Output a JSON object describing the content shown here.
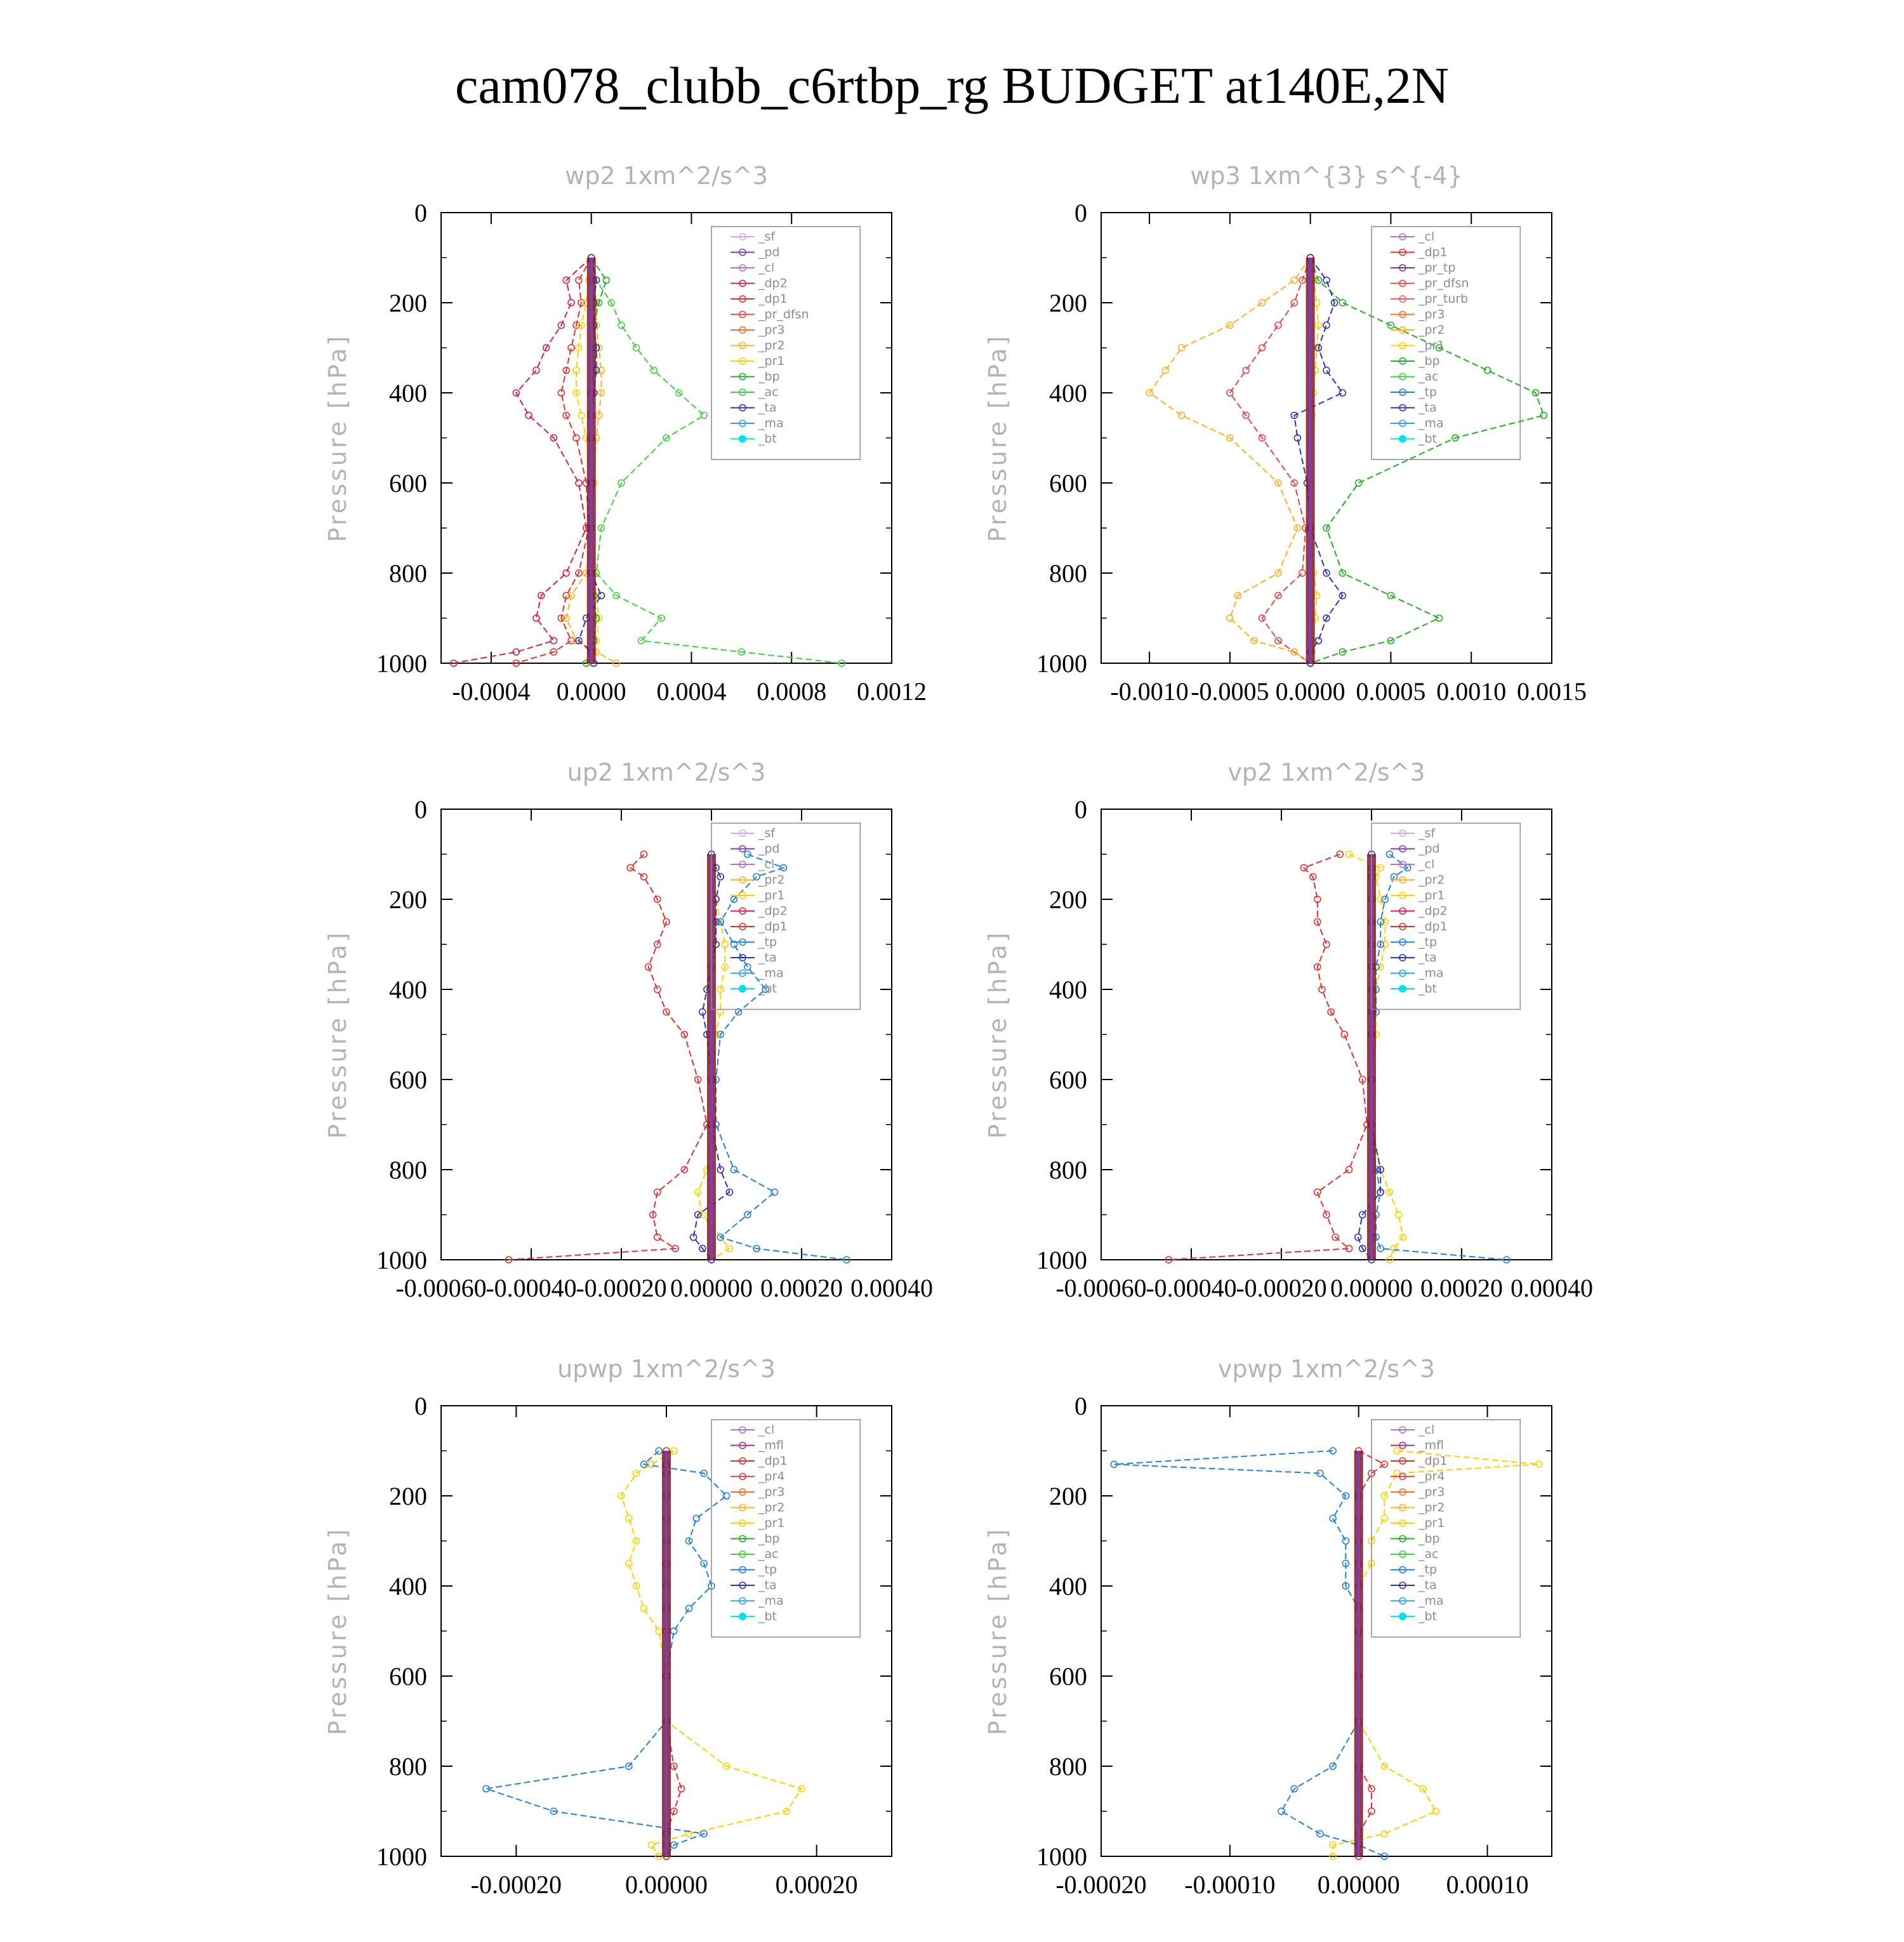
{
  "title": "cam078_clubb_c6rtbp_rg  BUDGET at140E,2N",
  "colors": {
    "axis": "#000000",
    "label_gray": "#b3b3b3",
    "series": {
      "_sf": "#d7a8f0",
      "_pd": "#7b3fb5",
      "_cl": "#b070d8",
      "_mfl": "#a0308a",
      "_dp2": "#d42050",
      "_dp1": "#e03030",
      "_dp1_alt": "#b03030",
      "_pr_dfsn": "#e04848",
      "_pr_tp": "#6a3a9a",
      "_pr_turb": "#e06060",
      "_pr4": "#e03a3a",
      "_pr3": "#f07030",
      "_pr2": "#ffb020",
      "_pr1": "#ffd000",
      "_bp": "#20b020",
      "_ac": "#40d040",
      "_tp": "#2080e0",
      "_ta": "#3030c0",
      "_ma": "#30a0e0",
      "_bt": "#00e0f0"
    }
  },
  "chart_data": [
    {
      "type": "line",
      "title": "wp2  1xm^2/s^3",
      "ylabel": "Pressure [hPa]",
      "xlim": [
        -0.0006,
        0.0012
      ],
      "xticks": [
        "-0.0004",
        "0.0000",
        "0.0004",
        "0.0008",
        "0.0012"
      ],
      "xtick_values": [
        -0.0004,
        0.0,
        0.0004,
        0.0008,
        0.0012
      ],
      "ylim": [
        0,
        1000
      ],
      "yticks": [
        "0",
        "200",
        "400",
        "600",
        "800",
        "1000"
      ],
      "legend": [
        "_sf",
        "_pd",
        "_cl",
        "_dp2",
        "_dp1",
        "_pr_dfsn",
        "_pr3",
        "_pr2",
        "_pr1",
        "_bp",
        "_ac",
        "_ta",
        "_ma",
        "_bt"
      ],
      "pressure": [
        100,
        150,
        200,
        250,
        300,
        350,
        400,
        450,
        500,
        600,
        700,
        800,
        850,
        900,
        950,
        975,
        1000
      ],
      "series": [
        {
          "name": "_dp2",
          "values": [
            0,
            -0.0001,
            -8e-05,
            -0.00012,
            -0.00018,
            -0.00022,
            -0.0003,
            -0.00025,
            -0.00015,
            -5e-05,
            -2e-05,
            -0.0001,
            -0.0002,
            -0.00022,
            -0.00015,
            -0.0003,
            -0.00055
          ]
        },
        {
          "name": "_dp1",
          "values": [
            0,
            -5e-05,
            -4e-05,
            -6e-05,
            -8e-05,
            -0.0001,
            -0.00012,
            -0.0001,
            -6e-05,
            -2e-05,
            -1e-05,
            -5e-05,
            -0.0001,
            -0.00012,
            -8e-05,
            -0.00015,
            -0.0003
          ]
        },
        {
          "name": "_pr2",
          "values": [
            0,
            1e-05,
            2e-05,
            2e-05,
            3e-05,
            4e-05,
            4e-05,
            3e-05,
            2e-05,
            1e-05,
            0,
            -2e-05,
            -8e-05,
            -0.0001,
            -6e-05,
            2e-05,
            0.0001
          ]
        },
        {
          "name": "_pr1",
          "values": [
            0,
            -1e-05,
            -2e-05,
            -4e-05,
            -5e-05,
            -6e-05,
            -6e-05,
            -4e-05,
            -2e-05,
            0,
            0,
            1e-05,
            2e-05,
            3e-05,
            2e-05,
            1e-05,
            0
          ]
        },
        {
          "name": "_bp",
          "values": [
            0,
            6e-05,
            3e-05,
            1e-05,
            2e-05,
            1e-05,
            0,
            0,
            0,
            0,
            0,
            0,
            1e-05,
            2e-05,
            1e-05,
            0,
            -2e-05
          ]
        },
        {
          "name": "_ac",
          "values": [
            0,
            2e-05,
            8e-05,
            0.00012,
            0.00018,
            0.00025,
            0.00035,
            0.00045,
            0.0003,
            0.00012,
            4e-05,
            2e-05,
            0.0001,
            0.00028,
            0.0002,
            0.0006,
            0.001
          ]
        },
        {
          "name": "_ta",
          "values": [
            0,
            2e-05,
            1e-05,
            1e-05,
            2e-05,
            2e-05,
            1e-05,
            0,
            0,
            0,
            0,
            0,
            4e-05,
            -2e-05,
            -5e-05,
            0,
            1e-05
          ]
        },
        {
          "name": "_bt",
          "values": [
            0,
            0,
            0,
            0,
            0,
            0,
            0,
            0,
            0,
            0,
            0,
            0,
            0,
            0,
            0,
            0,
            0
          ]
        }
      ]
    },
    {
      "type": "line",
      "title": "wp3  1xm^{3} s^{-4}",
      "ylabel": "Pressure [hPa]",
      "xlim": [
        -0.0013,
        0.0015
      ],
      "xticks": [
        "-0.0010",
        "-0.0005",
        "0.0000",
        "0.0005",
        "0.0010",
        "0.0015"
      ],
      "xtick_values": [
        -0.001,
        -0.0005,
        0.0,
        0.0005,
        0.001,
        0.0015
      ],
      "ylim": [
        0,
        1000
      ],
      "yticks": [
        "0",
        "200",
        "400",
        "600",
        "800",
        "1000"
      ],
      "legend": [
        "_cl",
        "_dp1",
        "_pr_tp",
        "_pr_dfsn",
        "_pr_turb",
        "_pr3",
        "_pr2",
        "_pr1",
        "_bp",
        "_ac",
        "_tp",
        "_ta",
        "_ma",
        "_bt"
      ],
      "pressure": [
        100,
        150,
        200,
        250,
        300,
        350,
        400,
        450,
        500,
        600,
        700,
        800,
        850,
        900,
        950,
        975,
        1000
      ],
      "series": [
        {
          "name": "_pr_dfsn",
          "values": [
            0,
            -5e-05,
            -0.0001,
            -0.0002,
            -0.0003,
            -0.0004,
            -0.0005,
            -0.0004,
            -0.0003,
            -0.0001,
            -3e-05,
            -5e-05,
            -0.0002,
            -0.0003,
            -0.0002,
            -0.0001,
            0
          ]
        },
        {
          "name": "_pr2",
          "values": [
            0,
            -0.0001,
            -0.0003,
            -0.0005,
            -0.0008,
            -0.0009,
            -0.001,
            -0.0008,
            -0.0005,
            -0.0002,
            -8e-05,
            -0.0002,
            -0.00045,
            -0.0005,
            -0.00035,
            -0.0001,
            0
          ]
        },
        {
          "name": "_pr1",
          "values": [
            0,
            2e-05,
            4e-05,
            5e-05,
            4e-05,
            3e-05,
            2e-05,
            1e-05,
            0,
            0,
            0,
            2e-05,
            4e-05,
            3e-05,
            2e-05,
            1e-05,
            0
          ]
        },
        {
          "name": "_bp",
          "values": [
            0,
            5e-05,
            0.0002,
            0.0005,
            0.0008,
            0.0011,
            0.0014,
            0.00145,
            0.0009,
            0.0003,
            0.0001,
            0.0002,
            0.0005,
            0.0008,
            0.0005,
            0.0002,
            0
          ]
        },
        {
          "name": "_ta",
          "values": [
            0,
            0.0001,
            0.00015,
            0.0001,
            5e-05,
            0.0001,
            0.0002,
            -0.0001,
            -8e-05,
            -2e-05,
            0,
            0.0001,
            0.0002,
            0.0001,
            5e-05,
            0,
            0
          ]
        },
        {
          "name": "_bt",
          "values": [
            0,
            0,
            0,
            0,
            0,
            0,
            0,
            0,
            0,
            0,
            0,
            0,
            0,
            0,
            0,
            0,
            0
          ]
        }
      ]
    },
    {
      "type": "line",
      "title": "up2  1xm^2/s^3",
      "ylabel": "Pressure [hPa]",
      "xlim": [
        -0.0006,
        0.0004
      ],
      "xticks": [
        "-0.00060",
        "-0.00040",
        "-0.00020",
        "0.00000",
        "0.00020",
        "0.00040"
      ],
      "xtick_values": [
        -0.0006,
        -0.0004,
        -0.0002,
        0.0,
        0.0002,
        0.0004
      ],
      "ylim": [
        0,
        1000
      ],
      "yticks": [
        "0",
        "200",
        "400",
        "600",
        "800",
        "1000"
      ],
      "legend": [
        "_sf",
        "_pd",
        "_cl",
        "_pr2",
        "_pr1",
        "_dp2",
        "_dp1",
        "_tp",
        "_ta",
        "_ma",
        "_bt"
      ],
      "pressure": [
        100,
        130,
        150,
        200,
        250,
        300,
        350,
        400,
        450,
        500,
        600,
        700,
        800,
        850,
        900,
        950,
        975,
        1000
      ],
      "series": [
        {
          "name": "_pr1",
          "values": [
            0,
            1e-05,
            2e-05,
            1e-05,
            2e-05,
            3e-05,
            3e-05,
            2e-05,
            2e-05,
            1e-05,
            0,
            0,
            -1e-05,
            -3e-05,
            -2e-05,
            2e-05,
            4e-05,
            0
          ]
        },
        {
          "name": "_dp1",
          "values": [
            -0.00015,
            -0.00018,
            -0.00015,
            -0.00012,
            -0.0001,
            -0.00012,
            -0.00014,
            -0.00012,
            -0.0001,
            -6e-05,
            -3e-05,
            -1e-05,
            -6e-05,
            -0.00012,
            -0.00013,
            -0.00012,
            -8e-05,
            -0.00045
          ]
        },
        {
          "name": "_tp",
          "values": [
            8e-05,
            0.00016,
            0.0001,
            5e-05,
            2e-05,
            5e-05,
            8e-05,
            0.00012,
            6e-05,
            2e-05,
            1e-05,
            1e-05,
            5e-05,
            0.00014,
            8e-05,
            2e-05,
            0.0001,
            0.0003
          ]
        },
        {
          "name": "_ta",
          "values": [
            0,
            1e-05,
            2e-05,
            1e-05,
            1e-05,
            1e-05,
            0,
            -1e-05,
            -2e-05,
            -1e-05,
            0,
            0,
            2e-05,
            4e-05,
            -3e-05,
            -4e-05,
            -2e-05,
            0
          ]
        },
        {
          "name": "_bt",
          "values": [
            0,
            0,
            0,
            0,
            0,
            0,
            0,
            0,
            0,
            0,
            0,
            0,
            0,
            0,
            0,
            0,
            0,
            0
          ]
        }
      ]
    },
    {
      "type": "line",
      "title": "vp2  1xm^2/s^3",
      "ylabel": "Pressure [hPa]",
      "xlim": [
        -0.0006,
        0.0004
      ],
      "xticks": [
        "-0.00060",
        "-0.00040",
        "-0.00020",
        "0.00000",
        "0.00020",
        "0.00040"
      ],
      "xtick_values": [
        -0.0006,
        -0.0004,
        -0.0002,
        0.0,
        0.0002,
        0.0004
      ],
      "ylim": [
        0,
        1000
      ],
      "yticks": [
        "0",
        "200",
        "400",
        "600",
        "800",
        "1000"
      ],
      "legend": [
        "_sf",
        "_pd",
        "_cl",
        "_pr2",
        "_pr1",
        "_dp2",
        "_dp1",
        "_tp",
        "_ta",
        "_ma",
        "_bt"
      ],
      "pressure": [
        100,
        130,
        150,
        200,
        250,
        300,
        350,
        400,
        450,
        500,
        600,
        700,
        800,
        850,
        900,
        950,
        975,
        1000
      ],
      "series": [
        {
          "name": "_pr1",
          "values": [
            -5e-05,
            2e-05,
            1e-05,
            2e-05,
            3e-05,
            3e-05,
            2e-05,
            1e-05,
            1e-05,
            1e-05,
            0,
            0,
            2e-05,
            4e-05,
            6e-05,
            7e-05,
            5e-05,
            4e-05
          ]
        },
        {
          "name": "_dp1",
          "values": [
            -7e-05,
            -0.00015,
            -0.00013,
            -0.00012,
            -0.00012,
            -0.0001,
            -0.00012,
            -0.00011,
            -9e-05,
            -6e-05,
            -2e-05,
            -1e-05,
            -5e-05,
            -0.00012,
            -0.0001,
            -8e-05,
            -5e-05,
            -0.00045
          ]
        },
        {
          "name": "_tp",
          "values": [
            4e-05,
            8e-05,
            5e-05,
            3e-05,
            2e-05,
            2e-05,
            1e-05,
            1e-05,
            1e-05,
            0,
            0,
            0,
            1e-05,
            2e-05,
            1e-05,
            1e-05,
            2e-05,
            0.0003
          ]
        },
        {
          "name": "_ta",
          "values": [
            0,
            0,
            0,
            0,
            0,
            0,
            0,
            0,
            0,
            0,
            0,
            0,
            2e-05,
            2e-05,
            -2e-05,
            -3e-05,
            -2e-05,
            0
          ]
        },
        {
          "name": "_bt",
          "values": [
            0,
            0,
            0,
            0,
            0,
            0,
            0,
            0,
            0,
            0,
            0,
            0,
            0,
            0,
            0,
            0,
            0,
            0
          ]
        }
      ]
    },
    {
      "type": "line",
      "title": "upwp  1xm^2/s^3",
      "ylabel": "Pressure [hPa]",
      "xlim": [
        -0.0003,
        0.0003
      ],
      "xticks": [
        "-0.00020",
        "0.00000",
        "0.00020"
      ],
      "xtick_values": [
        -0.0002,
        0.0,
        0.0002
      ],
      "ylim": [
        0,
        1000
      ],
      "yticks": [
        "0",
        "200",
        "400",
        "600",
        "800",
        "1000"
      ],
      "legend": [
        "_cl",
        "_mfl",
        "_dp1",
        "_pr4",
        "_pr3",
        "_pr2",
        "_pr1",
        "_bp",
        "_ac",
        "_tp",
        "_ta",
        "_ma",
        "_bt"
      ],
      "pressure": [
        100,
        130,
        150,
        200,
        250,
        300,
        350,
        400,
        450,
        500,
        600,
        700,
        800,
        850,
        900,
        950,
        975,
        1000
      ],
      "series": [
        {
          "name": "_pr1",
          "values": [
            1e-05,
            -2e-05,
            -4e-05,
            -6e-05,
            -5e-05,
            -4e-05,
            -5e-05,
            -4e-05,
            -3e-05,
            -1e-05,
            0,
            0,
            8e-05,
            0.00018,
            0.00016,
            3e-05,
            -2e-05,
            -1e-05
          ]
        },
        {
          "name": "_tp",
          "values": [
            -1e-05,
            -3e-05,
            5e-05,
            8e-05,
            4e-05,
            3e-05,
            5e-05,
            6e-05,
            3e-05,
            1e-05,
            0,
            0,
            -5e-05,
            -0.00024,
            -0.00015,
            5e-05,
            1e-05,
            0
          ]
        },
        {
          "name": "_dp1",
          "values": [
            0,
            0,
            0,
            0,
            0,
            0,
            0,
            0,
            0,
            0,
            0,
            0,
            1e-05,
            2e-05,
            1e-05,
            0,
            0,
            0
          ]
        },
        {
          "name": "_bt",
          "values": [
            0,
            0,
            0,
            0,
            0,
            0,
            0,
            0,
            0,
            0,
            0,
            0,
            0,
            0,
            0,
            0,
            0,
            0
          ]
        }
      ]
    },
    {
      "type": "line",
      "title": "vpwp  1xm^2/s^3",
      "ylabel": "Pressure [hPa]",
      "xlim": [
        -0.0002,
        0.00015
      ],
      "xticks": [
        "-0.00020",
        "-0.00010",
        "0.00000",
        "0.00010"
      ],
      "xtick_values": [
        -0.0002,
        -0.0001,
        0.0,
        0.0001
      ],
      "ylim": [
        0,
        1000
      ],
      "yticks": [
        "0",
        "200",
        "400",
        "600",
        "800",
        "1000"
      ],
      "legend": [
        "_cl",
        "_mfl",
        "_dp1",
        "_pr4",
        "_pr3",
        "_pr2",
        "_pr1",
        "_bp",
        "_ac",
        "_tp",
        "_ta",
        "_ma",
        "_bt"
      ],
      "pressure": [
        100,
        130,
        150,
        200,
        250,
        300,
        350,
        400,
        450,
        500,
        600,
        700,
        800,
        850,
        900,
        950,
        975,
        1000
      ],
      "series": [
        {
          "name": "_pr1",
          "values": [
            3e-05,
            0.00014,
            3e-05,
            2e-05,
            2e-05,
            1e-05,
            1e-05,
            0,
            0,
            0,
            0,
            0,
            2e-05,
            5e-05,
            6e-05,
            2e-05,
            -2e-05,
            -2e-05
          ]
        },
        {
          "name": "_tp",
          "values": [
            -2e-05,
            -0.00019,
            -3e-05,
            -1e-05,
            -2e-05,
            -1e-05,
            -1e-05,
            -1e-05,
            0,
            0,
            0,
            0,
            -2e-05,
            -5e-05,
            -6e-05,
            -3e-05,
            0,
            2e-05
          ]
        },
        {
          "name": "_dp1",
          "values": [
            0,
            2e-05,
            1e-05,
            0,
            0,
            0,
            0,
            0,
            0,
            0,
            0,
            0,
            0,
            1e-05,
            1e-05,
            0,
            0,
            0
          ]
        },
        {
          "name": "_bt",
          "values": [
            0,
            0,
            0,
            0,
            0,
            0,
            0,
            0,
            0,
            0,
            0,
            0,
            0,
            0,
            0,
            0,
            0,
            0
          ]
        }
      ]
    }
  ]
}
